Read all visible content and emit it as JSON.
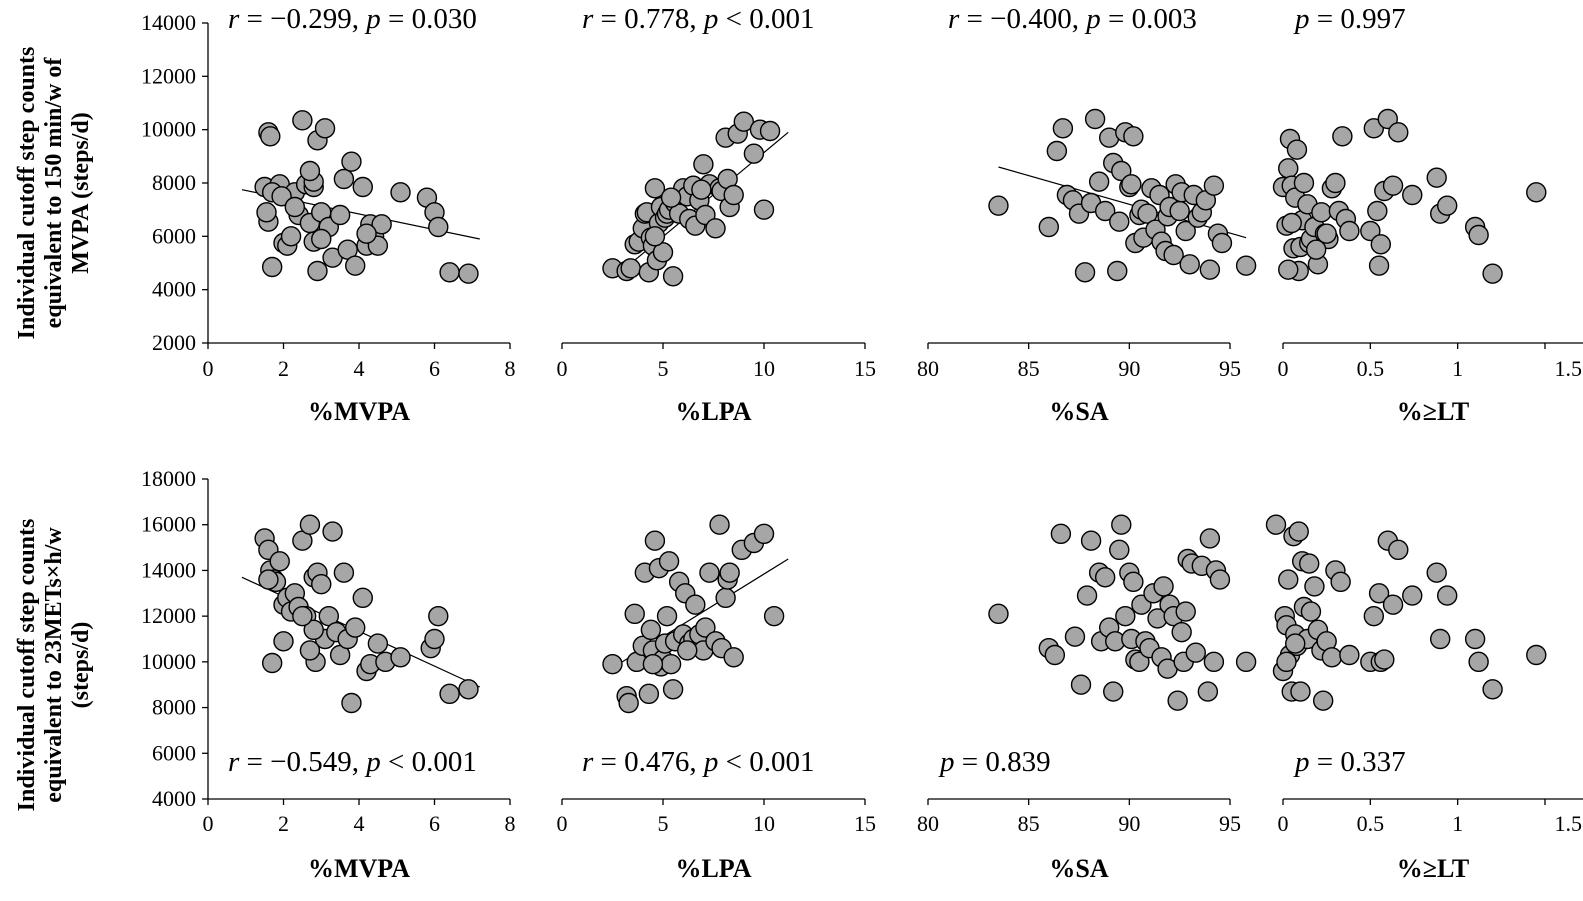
{
  "y_titles": {
    "top": [
      "Individual cutoff step counts",
      "equivalent to 150 min/w of",
      "MVPA (steps/d)"
    ],
    "bottom": [
      "Individual cutoff step counts",
      "equivalent to 23METs×h/w",
      "(steps/d)"
    ]
  },
  "chart_data": [
    {
      "type": "scatter",
      "xlabel": "%MVPA",
      "ylabel": "",
      "xlim": [
        0,
        8
      ],
      "xticks": [
        0,
        2,
        4,
        6,
        8
      ],
      "ylim": [
        2000,
        14000
      ],
      "yticks": [
        2000,
        4000,
        6000,
        8000,
        10000,
        12000,
        14000
      ],
      "stat": {
        "r": "−0.299",
        "p_op": "=",
        "p": "0.030"
      },
      "trend": {
        "x": [
          0.9,
          7.2
        ],
        "y": [
          7750,
          5900
        ]
      },
      "x": [
        1.5,
        1.6,
        1.65,
        1.7,
        1.6,
        1.55,
        1.9,
        1.7,
        2.0,
        2.1,
        2.3,
        2.4,
        2.5,
        2.6,
        2.7,
        2.8,
        2.8,
        2.9,
        2.7,
        2.8,
        2.9,
        3.0,
        3.1,
        3.2,
        3.3,
        3.5,
        3.6,
        3.7,
        3.8,
        3.9,
        4.1,
        4.2,
        4.3,
        4.4,
        4.5,
        4.6,
        5.1,
        5.8,
        6.0,
        6.1,
        6.4,
        6.9,
        1.95,
        2.2,
        3.0,
        2.3,
        4.2
      ],
      "y": [
        7850,
        9900,
        9750,
        4850,
        6550,
        6900,
        7950,
        7650,
        5750,
        5650,
        7650,
        6800,
        10350,
        7950,
        6500,
        7850,
        8050,
        9600,
        8450,
        5800,
        4700,
        6900,
        10050,
        6350,
        5200,
        6800,
        8150,
        5500,
        8800,
        4900,
        7850,
        5650,
        6450,
        6000,
        5650,
        6450,
        7650,
        7450,
        6900,
        6350,
        4650,
        4600,
        7500,
        6000,
        5900,
        7100,
        6100
      ]
    },
    {
      "type": "scatter",
      "xlabel": "%LPA",
      "ylabel": "",
      "xlim": [
        0,
        15
      ],
      "xticks": [
        0,
        5,
        10,
        15
      ],
      "ylim": [
        2000,
        14000
      ],
      "stat": {
        "r": "0.778",
        "p_op": "<",
        "p": "0.001"
      },
      "trend": {
        "x": [
          2.8,
          11.2
        ],
        "y": [
          4600,
          9900
        ]
      },
      "x": [
        2.5,
        3.2,
        3.4,
        3.6,
        3.8,
        4.0,
        4.1,
        4.2,
        4.3,
        4.4,
        4.5,
        4.6,
        4.7,
        4.8,
        4.9,
        5.0,
        5.1,
        5.2,
        5.3,
        5.5,
        5.6,
        5.8,
        6.0,
        6.2,
        6.3,
        6.5,
        6.6,
        6.8,
        7.0,
        7.1,
        7.3,
        7.6,
        7.8,
        7.9,
        8.1,
        8.2,
        8.3,
        8.5,
        8.7,
        9.0,
        9.5,
        9.8,
        10.0,
        10.3,
        5.4,
        6.9,
        4.6
      ],
      "y": [
        4800,
        4700,
        4800,
        5700,
        5800,
        6300,
        6850,
        6900,
        4650,
        5950,
        5650,
        7800,
        5100,
        6500,
        7100,
        5400,
        6700,
        6850,
        7000,
        4500,
        7250,
        6850,
        7800,
        7500,
        6650,
        7900,
        6400,
        7350,
        8700,
        6800,
        7950,
        6300,
        7800,
        7700,
        9700,
        8150,
        7100,
        7550,
        9850,
        10300,
        9100,
        10000,
        7000,
        9950,
        7450,
        7750,
        6000
      ]
    },
    {
      "type": "scatter",
      "xlabel": "%SA",
      "ylabel": "",
      "xlim": [
        80,
        100
      ],
      "xticks": [
        80,
        85,
        90,
        95
      ],
      "ylim": [
        2000,
        14000
      ],
      "stat": {
        "r": "−0.400",
        "p_op": "=",
        "p": "0.003"
      },
      "trend": {
        "x": [
          83.5,
          95.8
        ],
        "y": [
          8600,
          5950
        ]
      },
      "x": [
        83.5,
        86.0,
        86.4,
        86.7,
        86.9,
        87.2,
        87.5,
        87.8,
        88.1,
        88.3,
        88.5,
        88.8,
        89.0,
        89.2,
        89.4,
        89.5,
        89.6,
        89.8,
        90.0,
        90.1,
        90.2,
        90.3,
        90.5,
        90.6,
        90.7,
        90.9,
        91.1,
        91.3,
        91.5,
        91.6,
        91.8,
        91.9,
        92.0,
        92.2,
        92.3,
        92.5,
        92.6,
        92.8,
        93.0,
        93.2,
        93.4,
        93.6,
        93.8,
        94.0,
        94.2,
        94.4,
        94.6,
        95.8
      ],
      "y": [
        7150,
        6350,
        9200,
        10050,
        7550,
        7350,
        6850,
        4650,
        7250,
        10400,
        8050,
        6950,
        9700,
        8750,
        4700,
        6550,
        8450,
        9900,
        7850,
        7950,
        9750,
        5750,
        6800,
        7000,
        5950,
        6850,
        7800,
        6250,
        7550,
        5800,
        5450,
        6750,
        7100,
        5300,
        7950,
        6950,
        7650,
        6200,
        4950,
        7550,
        6700,
        6900,
        7350,
        4750,
        7900,
        6100,
        5750,
        4900
      ]
    },
    {
      "type": "scatter",
      "xlabel": "%≥LT",
      "ylabel": "",
      "xlim": [
        0,
        1.6
      ],
      "xticks": [
        0,
        0.5,
        1,
        1.5
      ],
      "ylim": [
        2000,
        14000
      ],
      "stat": {
        "r": "",
        "p_op": "=",
        "p": "0.997"
      },
      "trend": null,
      "x": [
        0.0,
        0.02,
        0.03,
        0.04,
        0.05,
        0.06,
        0.07,
        0.08,
        0.09,
        0.1,
        0.11,
        0.12,
        0.14,
        0.15,
        0.16,
        0.18,
        0.2,
        0.22,
        0.24,
        0.26,
        0.28,
        0.3,
        0.32,
        0.34,
        0.36,
        0.38,
        0.5,
        0.52,
        0.54,
        0.55,
        0.56,
        0.58,
        0.6,
        0.63,
        0.66,
        0.74,
        0.88,
        0.9,
        0.94,
        1.1,
        1.12,
        1.2,
        1.45,
        0.03,
        0.05,
        0.25,
        0.19
      ],
      "y": [
        7850,
        6400,
        8550,
        9650,
        7900,
        5550,
        7450,
        9250,
        4700,
        5600,
        6600,
        8000,
        7200,
        5750,
        5900,
        6350,
        4950,
        6900,
        6100,
        5900,
        7800,
        8000,
        6950,
        9750,
        6650,
        6200,
        6200,
        10050,
        6950,
        4900,
        5700,
        7700,
        10400,
        7900,
        9900,
        7550,
        8200,
        6850,
        7150,
        6350,
        6050,
        4600,
        7650,
        4750,
        6500,
        6100,
        5500
      ]
    },
    {
      "type": "scatter",
      "xlabel": "%MVPA",
      "ylabel": "",
      "xlim": [
        0,
        8
      ],
      "xticks": [
        0,
        2,
        4,
        6,
        8
      ],
      "ylim": [
        4000,
        18000
      ],
      "yticks": [
        4000,
        6000,
        8000,
        10000,
        12000,
        14000,
        16000,
        18000
      ],
      "stat": {
        "r": "−0.549",
        "p_op": "<",
        "p": "0.001"
      },
      "trend": {
        "x": [
          0.9,
          7.2
        ],
        "y": [
          13700,
          8900
        ]
      },
      "x": [
        1.5,
        1.6,
        1.65,
        1.7,
        1.75,
        1.8,
        1.9,
        2.0,
        2.1,
        2.2,
        2.3,
        2.4,
        2.5,
        2.6,
        2.7,
        2.8,
        2.85,
        2.9,
        3.0,
        3.1,
        3.2,
        3.3,
        3.4,
        3.5,
        3.6,
        3.7,
        3.8,
        3.9,
        4.1,
        4.2,
        4.3,
        4.5,
        4.7,
        5.1,
        5.9,
        6.0,
        6.1,
        6.4,
        6.9,
        2.7,
        2.8,
        1.6,
        2.0,
        2.5
      ],
      "y": [
        15400,
        14900,
        14000,
        9950,
        13600,
        13500,
        14400,
        12500,
        12800,
        12200,
        13000,
        12400,
        15300,
        12000,
        16000,
        13700,
        10000,
        13900,
        13400,
        11000,
        12000,
        15700,
        11300,
        10300,
        13900,
        11000,
        8200,
        11500,
        12800,
        9600,
        9900,
        10800,
        10000,
        10200,
        10600,
        11000,
        12000,
        8600,
        8800,
        10500,
        11400,
        13600,
        10900,
        12000
      ]
    },
    {
      "type": "scatter",
      "xlabel": "%LPA",
      "ylabel": "",
      "xlim": [
        0,
        15
      ],
      "xticks": [
        0,
        5,
        10,
        15
      ],
      "ylim": [
        4000,
        18000
      ],
      "stat": {
        "r": "0.476",
        "p_op": "<",
        "p": "0.001"
      },
      "trend": {
        "x": [
          2.8,
          11.2
        ],
        "y": [
          9900,
          14500
        ]
      },
      "x": [
        2.5,
        3.2,
        3.3,
        3.6,
        3.7,
        4.0,
        4.1,
        4.3,
        4.4,
        4.5,
        4.6,
        4.7,
        4.8,
        4.9,
        5.0,
        5.1,
        5.2,
        5.3,
        5.4,
        5.5,
        5.6,
        5.8,
        6.0,
        6.1,
        6.3,
        6.5,
        6.6,
        6.8,
        7.0,
        7.1,
        7.3,
        7.6,
        7.8,
        7.9,
        8.1,
        8.2,
        8.3,
        8.5,
        8.9,
        9.5,
        10.0,
        10.5,
        4.5,
        6.2
      ],
      "y": [
        9900,
        8500,
        8200,
        12100,
        10000,
        10700,
        13900,
        8600,
        11400,
        10500,
        15300,
        9900,
        14100,
        9800,
        10100,
        10800,
        12000,
        14400,
        9900,
        8800,
        10900,
        13500,
        11200,
        13000,
        10800,
        11000,
        12500,
        11200,
        10500,
        11500,
        13900,
        10900,
        16000,
        10600,
        12800,
        13600,
        13900,
        10200,
        14900,
        15200,
        15600,
        12000,
        9900,
        10500
      ]
    },
    {
      "type": "scatter",
      "xlabel": "%SA",
      "ylabel": "",
      "xlim": [
        80,
        100
      ],
      "xticks": [
        80,
        85,
        90,
        95
      ],
      "ylim": [
        4000,
        18000
      ],
      "stat": {
        "r": "",
        "p_op": "=",
        "p": "0.839"
      },
      "trend": null,
      "x": [
        83.5,
        86.0,
        86.3,
        86.6,
        87.3,
        87.6,
        87.9,
        88.1,
        88.5,
        88.6,
        88.8,
        89.0,
        89.2,
        89.3,
        89.5,
        89.6,
        89.8,
        90.0,
        90.1,
        90.2,
        90.3,
        90.5,
        90.6,
        90.8,
        91.0,
        91.2,
        91.4,
        91.6,
        91.7,
        91.9,
        92.0,
        92.2,
        92.4,
        92.6,
        92.7,
        92.9,
        93.1,
        93.3,
        93.6,
        93.9,
        94.0,
        94.2,
        94.3,
        94.5,
        95.8,
        92.8
      ],
      "y": [
        12100,
        10600,
        10300,
        15600,
        11100,
        9000,
        12900,
        15300,
        13900,
        10900,
        13700,
        11500,
        8700,
        10900,
        14900,
        16000,
        12000,
        13900,
        11000,
        13500,
        10100,
        10000,
        12500,
        10900,
        10600,
        13000,
        11900,
        10200,
        13300,
        9700,
        12500,
        12000,
        8300,
        11300,
        10000,
        14500,
        14300,
        10400,
        14200,
        8700,
        15400,
        10000,
        14000,
        13600,
        10000,
        12200
      ]
    },
    {
      "type": "scatter",
      "xlabel": "%≥LT",
      "ylabel": "",
      "xlim": [
        0,
        1.6
      ],
      "xticks": [
        0,
        0.5,
        1,
        1.5
      ],
      "ylim": [
        4000,
        18000
      ],
      "stat": {
        "r": "",
        "p_op": "=",
        "p": "0.337"
      },
      "trend": null,
      "x": [
        -0.04,
        0.0,
        0.01,
        0.02,
        0.03,
        0.04,
        0.05,
        0.06,
        0.07,
        0.08,
        0.09,
        0.1,
        0.11,
        0.12,
        0.14,
        0.15,
        0.16,
        0.18,
        0.2,
        0.22,
        0.23,
        0.25,
        0.28,
        0.3,
        0.33,
        0.38,
        0.5,
        0.52,
        0.55,
        0.56,
        0.58,
        0.6,
        0.63,
        0.66,
        0.74,
        0.88,
        0.9,
        0.94,
        1.1,
        1.12,
        1.2,
        1.45,
        0.02,
        0.07
      ],
      "y": [
        16000,
        9600,
        12000,
        11600,
        13600,
        10300,
        8700,
        15500,
        11200,
        10700,
        15700,
        8700,
        14400,
        12400,
        11000,
        14300,
        12200,
        13300,
        11400,
        10500,
        8300,
        10900,
        10200,
        14000,
        13500,
        10300,
        10000,
        12000,
        13000,
        10000,
        10100,
        15300,
        12500,
        14900,
        12900,
        13900,
        11000,
        12900,
        11000,
        10000,
        8800,
        10300,
        10000,
        10800
      ]
    }
  ]
}
